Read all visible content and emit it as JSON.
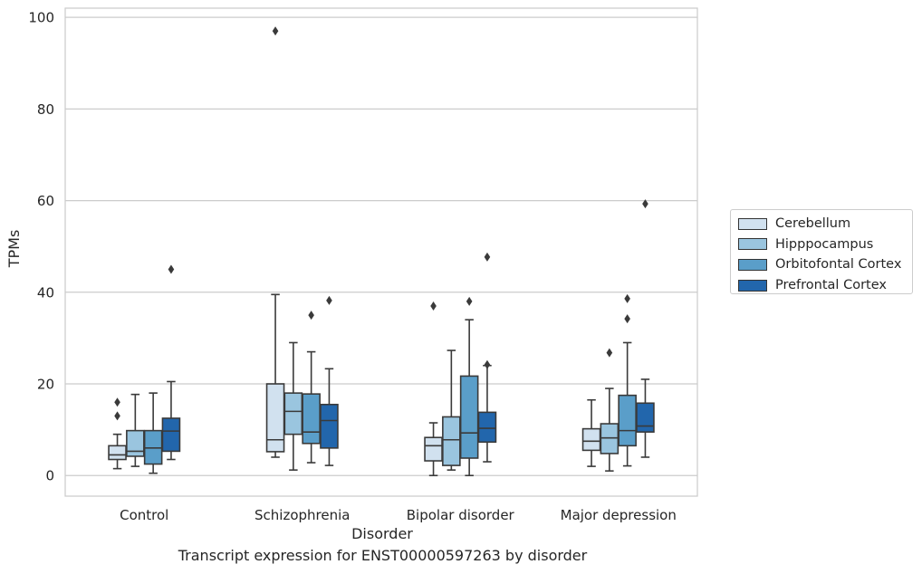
{
  "caption": "Transcript expression for ENST00000597263 by disorder",
  "chart_data": {
    "type": "box",
    "title": "",
    "xlabel": "Disorder",
    "ylabel": "TPMs",
    "ylim": [
      -4.5,
      102
    ],
    "yticks": [
      0,
      20,
      40,
      60,
      80,
      100
    ],
    "grid": true,
    "legend_position": "right",
    "categories": [
      "Control",
      "Schizophrenia",
      "Bipolar disorder",
      "Major depression"
    ],
    "series": [
      {
        "name": "Cerebellum",
        "color": "#d1e1ef",
        "boxes": [
          {
            "whislo": 1.5,
            "q1": 3.5,
            "med": 4.5,
            "q3": 6.5,
            "whishi": 9,
            "fliers": [
              13,
              16
            ]
          },
          {
            "whislo": 4,
            "q1": 5.2,
            "med": 7.8,
            "q3": 20,
            "whishi": 39.5,
            "fliers": [
              97
            ]
          },
          {
            "whislo": 0,
            "q1": 3.2,
            "med": 6.5,
            "q3": 8.3,
            "whishi": 11.5,
            "fliers": [
              37
            ]
          },
          {
            "whislo": 2,
            "q1": 5.5,
            "med": 7.5,
            "q3": 10.2,
            "whishi": 16.5,
            "fliers": []
          }
        ]
      },
      {
        "name": "Hipppocampus",
        "color": "#9ac5df",
        "boxes": [
          {
            "whislo": 2,
            "q1": 4.2,
            "med": 5.3,
            "q3": 9.8,
            "whishi": 17.7,
            "fliers": []
          },
          {
            "whislo": 1.2,
            "q1": 9,
            "med": 14,
            "q3": 18,
            "whishi": 29,
            "fliers": []
          },
          {
            "whislo": 1.2,
            "q1": 2.2,
            "med": 7.8,
            "q3": 12.8,
            "whishi": 27.3,
            "fliers": []
          },
          {
            "whislo": 1,
            "q1": 4.8,
            "med": 8.2,
            "q3": 11.3,
            "whishi": 19,
            "fliers": [
              26.8
            ]
          }
        ]
      },
      {
        "name": "Orbitofontal Cortex",
        "color": "#5a9ec9",
        "boxes": [
          {
            "whislo": 0.5,
            "q1": 2.5,
            "med": 6,
            "q3": 9.8,
            "whishi": 18,
            "fliers": []
          },
          {
            "whislo": 2.8,
            "q1": 7,
            "med": 9.5,
            "q3": 17.8,
            "whishi": 27,
            "fliers": [
              35
            ]
          },
          {
            "whislo": 0,
            "q1": 3.8,
            "med": 9.3,
            "q3": 21.7,
            "whishi": 34,
            "fliers": [
              38
            ]
          },
          {
            "whislo": 2.1,
            "q1": 6.5,
            "med": 9.8,
            "q3": 17.5,
            "whishi": 29,
            "fliers": [
              34.2,
              38.6
            ]
          }
        ]
      },
      {
        "name": "Prefrontal Cortex",
        "color": "#2266ac",
        "boxes": [
          {
            "whislo": 3.5,
            "q1": 5.3,
            "med": 9.7,
            "q3": 12.5,
            "whishi": 20.5,
            "fliers": [
              45
            ]
          },
          {
            "whislo": 2.2,
            "q1": 6,
            "med": 12,
            "q3": 15.5,
            "whishi": 23.3,
            "fliers": [
              38.2
            ]
          },
          {
            "whislo": 3,
            "q1": 7.3,
            "med": 10.3,
            "q3": 13.8,
            "whishi": 24,
            "fliers": [
              47.7,
              24.2
            ]
          },
          {
            "whislo": 4,
            "q1": 9.5,
            "med": 10.8,
            "q3": 15.8,
            "whishi": 21,
            "fliers": [
              59.3
            ]
          }
        ]
      }
    ]
  }
}
